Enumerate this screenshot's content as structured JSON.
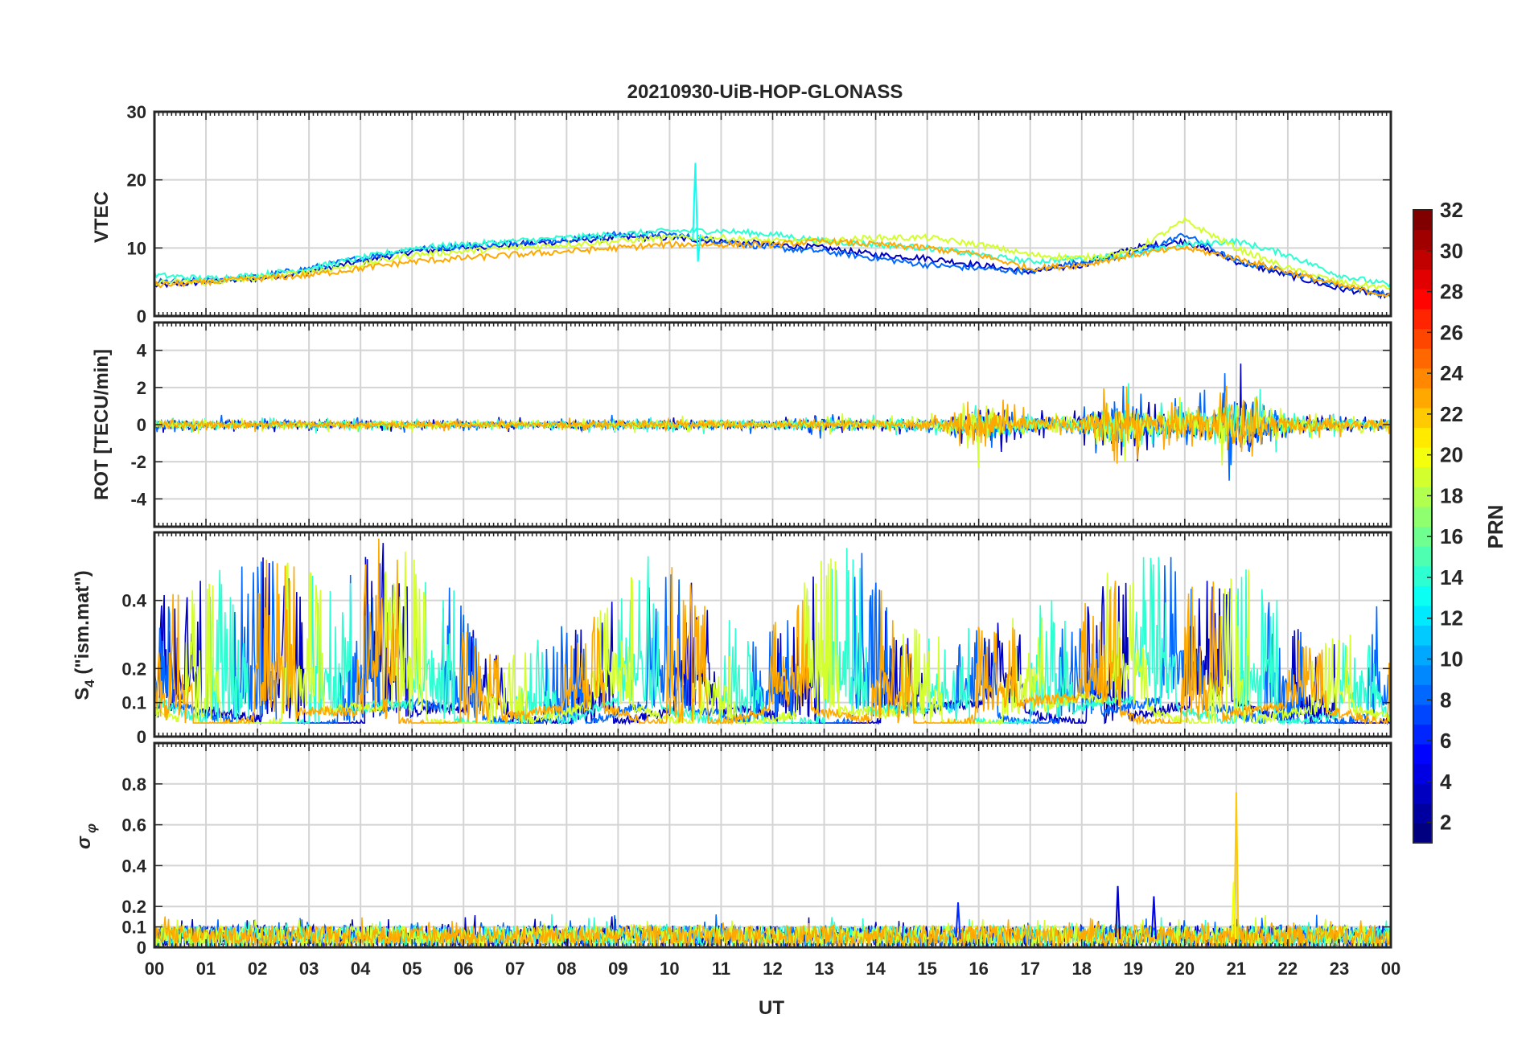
{
  "chart_data": {
    "type": "line",
    "title": "20210930-UiB-HOP-GLONASS",
    "xlabel": "UT",
    "x_range_hours": [
      0,
      24
    ],
    "x_tick_labels": [
      "00",
      "01",
      "02",
      "03",
      "04",
      "05",
      "06",
      "07",
      "08",
      "09",
      "10",
      "11",
      "12",
      "13",
      "14",
      "15",
      "16",
      "17",
      "18",
      "19",
      "20",
      "21",
      "22",
      "23",
      "00"
    ],
    "grid": true,
    "colormap": "jet",
    "colorbar": {
      "label": "PRN",
      "range": [
        1,
        32
      ],
      "tick_labels": [
        "2",
        "4",
        "6",
        "8",
        "10",
        "12",
        "14",
        "16",
        "18",
        "20",
        "22",
        "24",
        "26",
        "28",
        "30",
        "32"
      ],
      "placement": "right"
    },
    "panels": [
      {
        "id": "vtec",
        "ylabel": "VTEC",
        "ylim": [
          0,
          30
        ],
        "y_tick_values": [
          0,
          10,
          20,
          30
        ],
        "y_tick_labels": [
          "0",
          "10",
          "20",
          "30"
        ],
        "series": [
          {
            "prn": 3,
            "x": [
              0,
              1,
              2,
              3,
              4,
              5,
              6,
              7,
              8,
              9,
              10,
              11,
              12,
              13,
              14,
              15,
              16,
              17,
              18,
              19,
              20,
              21,
              22,
              23,
              24
            ],
            "y": [
              4.5,
              5,
              5.5,
              6.5,
              8,
              9.5,
              10,
              10.5,
              11,
              11.5,
              11.5,
              11,
              10.5,
              10,
              9,
              8.5,
              7.5,
              6.5,
              7.5,
              10,
              11,
              8,
              6,
              4,
              3
            ]
          },
          {
            "prn": 8,
            "x": [
              0,
              1,
              2,
              3,
              4,
              5,
              6,
              7,
              8,
              9,
              10,
              11,
              12,
              13,
              14,
              15,
              16,
              17,
              18,
              19,
              20,
              21,
              22,
              23,
              24
            ],
            "y": [
              5,
              5.2,
              5.8,
              7,
              8.5,
              9.8,
              10.3,
              10.8,
              11.2,
              12,
              12,
              11,
              10,
              9.5,
              8.5,
              7.5,
              7,
              6.5,
              8,
              9,
              12,
              8,
              6.5,
              4.5,
              3
            ]
          },
          {
            "prn": 14,
            "x": [
              0,
              1,
              2,
              3,
              4,
              5,
              6,
              7,
              8,
              9,
              10,
              11,
              12,
              13,
              14,
              15,
              16,
              17,
              18,
              19,
              20,
              21,
              22,
              23,
              24
            ],
            "y": [
              6,
              5.5,
              6,
              7,
              8.5,
              10,
              10.5,
              11,
              11.5,
              12,
              12.5,
              12.5,
              12,
              11,
              10.5,
              10,
              9,
              8,
              8.5,
              9,
              10.5,
              11,
              9,
              6,
              4.5
            ]
          },
          {
            "prn": 19,
            "x": [
              0,
              1,
              2,
              3,
              4,
              5,
              6,
              7,
              8,
              9,
              10,
              11,
              12,
              13,
              14,
              15,
              16,
              17,
              18,
              19,
              20,
              21,
              22,
              23,
              24
            ],
            "y": [
              5,
              5,
              5.5,
              6.5,
              7.5,
              9,
              9.5,
              10,
              10.5,
              11,
              11.5,
              11.5,
              11,
              11,
              11.5,
              11.5,
              10.5,
              9,
              8.5,
              9.5,
              14,
              10,
              7,
              5,
              4
            ]
          },
          {
            "prn": 23,
            "x": [
              0,
              1,
              2,
              3,
              4,
              5,
              6,
              7,
              8,
              9,
              10,
              11,
              12,
              13,
              14,
              15,
              16,
              17,
              18,
              19,
              20,
              21,
              22,
              23,
              24
            ],
            "y": [
              4.5,
              5,
              5.5,
              6,
              7,
              8,
              8.5,
              9,
              9.5,
              10,
              10.5,
              10.5,
              10.5,
              11,
              10.5,
              10,
              9,
              7,
              7.5,
              9,
              10,
              8.5,
              6.5,
              4.5,
              3
            ]
          }
        ]
      },
      {
        "id": "rot",
        "ylabel": "ROT [TECU/min]",
        "ylim": [
          -5.5,
          5.5
        ],
        "y_tick_values": [
          -4,
          -2,
          0,
          2,
          4
        ],
        "y_tick_labels": [
          "-4",
          "-2",
          "0",
          "2",
          "4"
        ],
        "envelope_x": [
          0,
          2,
          4,
          6,
          8,
          10,
          12,
          13,
          14,
          15,
          15.5,
          16,
          17,
          18,
          18.5,
          19,
          19.5,
          20,
          20.5,
          21,
          22,
          23,
          24
        ],
        "envelope_amp": [
          0.6,
          0.5,
          0.5,
          0.4,
          0.5,
          0.6,
          0.5,
          0.8,
          0.6,
          0.8,
          1.2,
          2.5,
          1.0,
          1.2,
          3.0,
          2.5,
          1.5,
          2.5,
          2.0,
          4.0,
          1.5,
          0.8,
          0.6
        ],
        "series_prns": [
          3,
          8,
          14,
          19,
          23
        ]
      },
      {
        "id": "s4",
        "ylabel": "S4 (\"ism.mat\")",
        "ylabel_main": "S",
        "ylabel_sub": "4",
        "ylabel_tail": " (\"ism.mat\")",
        "ylim": [
          0,
          0.6
        ],
        "y_tick_values": [
          0,
          0.1,
          0.2,
          0.4
        ],
        "y_tick_labels": [
          "0",
          "0.1",
          "0.2",
          "0.4"
        ],
        "base_x": [
          0,
          1,
          2,
          3,
          4,
          5,
          6,
          7,
          8,
          9,
          10,
          11,
          12,
          13,
          14,
          15,
          16,
          17,
          18,
          19,
          20,
          21,
          22,
          23,
          24
        ],
        "base_y": [
          0.12,
          0.08,
          0.07,
          0.08,
          0.1,
          0.11,
          0.09,
          0.08,
          0.09,
          0.12,
          0.1,
          0.09,
          0.1,
          0.08,
          0.09,
          0.1,
          0.11,
          0.12,
          0.13,
          0.12,
          0.11,
          0.12,
          0.1,
          0.09,
          0.08
        ],
        "peak_x": [
          0.5,
          1.5,
          2.5,
          3.5,
          4.5,
          5.5,
          6.5,
          7.5,
          8.5,
          9.5,
          10.5,
          11.5,
          12.5,
          13.5,
          14.5,
          15.5,
          16.5,
          17.5,
          18.5,
          19.5,
          20.5,
          21.5,
          22.5,
          23.5
        ],
        "peak_y": [
          0.42,
          0.5,
          0.55,
          0.45,
          0.6,
          0.5,
          0.25,
          0.3,
          0.35,
          0.55,
          0.45,
          0.3,
          0.45,
          0.6,
          0.35,
          0.3,
          0.35,
          0.4,
          0.5,
          0.55,
          0.45,
          0.5,
          0.25,
          0.38
        ],
        "series_prns": [
          3,
          8,
          14,
          19,
          23
        ]
      },
      {
        "id": "sigphi",
        "ylabel": "σ φ",
        "ylabel_main": "σ",
        "ylabel_sub": "φ",
        "ylim": [
          0,
          1
        ],
        "y_tick_values": [
          0,
          0.1,
          0.2,
          0.4,
          0.6,
          0.8
        ],
        "y_tick_labels": [
          "0",
          "0.1",
          "0.2",
          "0.4",
          "0.6",
          "0.8"
        ],
        "base_level": 0.06,
        "spikes": [
          {
            "x": 18.7,
            "y": 0.3,
            "prn": 3
          },
          {
            "x": 19.4,
            "y": 0.25,
            "prn": 5
          },
          {
            "x": 21.0,
            "y": 0.76,
            "prn": 22
          },
          {
            "x": 20.95,
            "y": 0.32,
            "prn": 20
          },
          {
            "x": 15.6,
            "y": 0.22,
            "prn": 6
          }
        ],
        "series_prns": [
          3,
          8,
          14,
          19,
          23
        ]
      }
    ]
  }
}
